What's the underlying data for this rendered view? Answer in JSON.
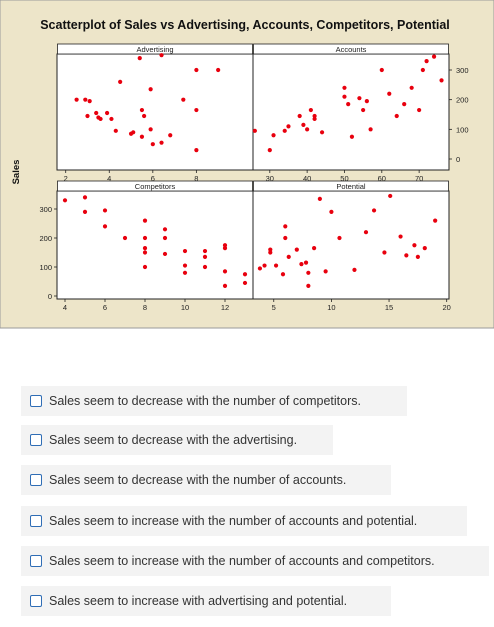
{
  "chart_data": {
    "type": "scatter",
    "title": "Scatterplot of Sales vs Advertising, Accounts, Competitors, Potential",
    "ylabel": "Sales",
    "background": "#ede5c9",
    "plot_background": "#ffffff",
    "point_color": "#e8000e",
    "grid": false,
    "y_ticks": [
      0,
      100,
      200,
      300
    ],
    "ylim": [
      -40,
      360
    ],
    "panels": [
      {
        "name": "Advertising",
        "xlim": [
          1.6,
          10.6
        ],
        "x_ticks": [
          2,
          4,
          6,
          8
        ],
        "tick_axis": "bottom",
        "x": [
          2.5,
          2.9,
          3.1,
          3.0,
          3.4,
          3.5,
          3.6,
          3.9,
          4.1,
          4.3,
          4.5,
          5.0,
          5.1,
          5.4,
          5.5,
          5.5,
          5.9,
          5.9,
          6.0,
          6.4,
          6.8,
          7.4,
          8.0,
          8.0,
          8.0,
          9.0,
          5.6,
          6.4
        ],
        "y": [
          200,
          200,
          195,
          145,
          155,
          140,
          135,
          155,
          135,
          95,
          260,
          85,
          90,
          340,
          165,
          75,
          100,
          235,
          50,
          350,
          80,
          200,
          30,
          165,
          300,
          300,
          145,
          55
        ]
      },
      {
        "name": "Accounts",
        "xlim": [
          25.5,
          78
        ],
        "x_ticks": [
          30,
          40,
          50,
          60,
          70
        ],
        "tick_axis": "bottom",
        "x": [
          26,
          30,
          31,
          34,
          35,
          38,
          39,
          40,
          41,
          42,
          42,
          44,
          50,
          50,
          51,
          52,
          54,
          55,
          56,
          57,
          60,
          62,
          64,
          66,
          68,
          70,
          71,
          72,
          74,
          76
        ],
        "y": [
          95,
          30,
          80,
          95,
          110,
          145,
          115,
          100,
          165,
          145,
          135,
          90,
          210,
          240,
          185,
          75,
          205,
          165,
          195,
          100,
          300,
          220,
          145,
          185,
          240,
          165,
          300,
          330,
          345,
          265
        ],
        "x_raw_ticks_note": ""
      },
      {
        "name": "Competitors",
        "xlim": [
          3.6,
          13.4
        ],
        "x_ticks": [
          4,
          6,
          8,
          10,
          12
        ],
        "tick_axis": "bottom",
        "x": [
          4.0,
          5.0,
          5.0,
          6.0,
          6.0,
          7.0,
          8.0,
          8.0,
          8.0,
          8.0,
          8.0,
          9.0,
          9.0,
          9.0,
          10.0,
          10.0,
          10.0,
          11.0,
          11.0,
          11.0,
          12.0,
          12.0,
          12.0,
          12.0,
          13.0,
          13.0
        ],
        "y": [
          330,
          340,
          290,
          295,
          240,
          200,
          260,
          200,
          165,
          150,
          100,
          230,
          200,
          145,
          155,
          105,
          80,
          155,
          135,
          100,
          175,
          165,
          85,
          35,
          75,
          45
        ]
      },
      {
        "name": "Potential",
        "xlim": [
          3.2,
          20.2
        ],
        "x_ticks": [
          5,
          10,
          15,
          20
        ],
        "tick_axis": "bottom",
        "x": [
          3.8,
          4.2,
          4.7,
          4.7,
          5.2,
          5.8,
          6.0,
          6.0,
          6.3,
          7.0,
          7.4,
          7.8,
          8.0,
          8.0,
          8.5,
          9.0,
          9.5,
          10.0,
          10.7,
          12.0,
          13.0,
          13.7,
          14.6,
          15.1,
          16.0,
          16.5,
          17.2,
          17.5,
          18.1,
          19.0
        ],
        "y": [
          95,
          105,
          160,
          150,
          105,
          75,
          240,
          200,
          135,
          160,
          110,
          115,
          80,
          35,
          165,
          335,
          85,
          290,
          200,
          90,
          220,
          295,
          150,
          345,
          205,
          140,
          175,
          135,
          165,
          260
        ]
      }
    ]
  },
  "options": [
    {
      "label": "Sales seem to decrease with the number of competitors.",
      "checked": false
    },
    {
      "label": "Sales seem to decrease with the advertising.",
      "checked": false
    },
    {
      "label": "Sales seem to decrease with the number of accounts.",
      "checked": false
    },
    {
      "label": "Sales seem to increase with the number of accounts and potential.",
      "checked": false
    },
    {
      "label": "Sales seem to increase with the number of accounts and competitors.",
      "checked": false
    },
    {
      "label": "Sales seem to increase with advertising and potential.",
      "checked": false
    }
  ]
}
